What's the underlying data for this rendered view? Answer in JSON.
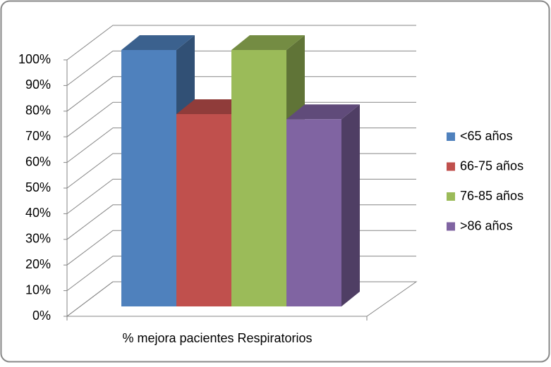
{
  "chart_data": {
    "type": "bar3d",
    "categories": [
      "% mejora pacientes Respiratorios"
    ],
    "series": [
      {
        "name": "<65 años",
        "color": "#4f81bd",
        "values": [
          100
        ]
      },
      {
        "name": "66-75 años",
        "color": "#c0504d",
        "values": [
          75
        ]
      },
      {
        "name": "76-85 años",
        "color": "#9bbb59",
        "values": [
          100
        ]
      },
      {
        "name": ">86 años",
        "color": "#8064a2",
        "values": [
          73
        ]
      }
    ],
    "ylim": [
      0,
      100
    ],
    "yticks": [
      {
        "value": 0,
        "label": "0%"
      },
      {
        "value": 10,
        "label": "10%"
      },
      {
        "value": 20,
        "label": "20%"
      },
      {
        "value": 30,
        "label": "30%"
      },
      {
        "value": 40,
        "label": "40%"
      },
      {
        "value": 50,
        "label": "50%"
      },
      {
        "value": 60,
        "label": "60%"
      },
      {
        "value": 70,
        "label": "70%"
      },
      {
        "value": 80,
        "label": "80%"
      },
      {
        "value": 90,
        "label": "90%"
      },
      {
        "value": 100,
        "label": "100%"
      }
    ],
    "grid": true,
    "legend": "right"
  }
}
